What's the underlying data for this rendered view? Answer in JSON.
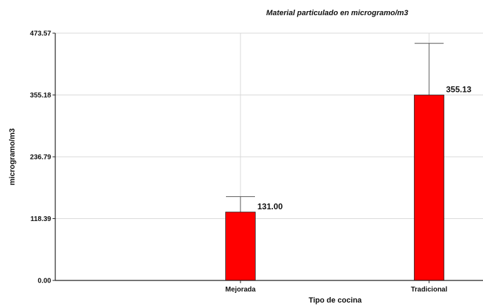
{
  "chart_data": {
    "type": "bar",
    "title": "Material particulado en microgramo/m3",
    "xlabel": "Tipo de cocina",
    "ylabel": "microgramo/m3",
    "categories": [
      "Mejorada",
      "Tradicional"
    ],
    "values": [
      131.0,
      355.13
    ],
    "value_labels": [
      "131.00",
      "355.13"
    ],
    "error_upper": [
      160.5,
      454.0
    ],
    "ylim": [
      0,
      473.57
    ],
    "yticks": [
      0.0,
      118.39,
      236.79,
      355.18,
      473.57
    ],
    "ytick_labels": [
      "0.00",
      "118.39",
      "236.79",
      "355.18",
      "473.57"
    ],
    "bar_color": "#ff0000",
    "grid": true,
    "legend": "none"
  }
}
